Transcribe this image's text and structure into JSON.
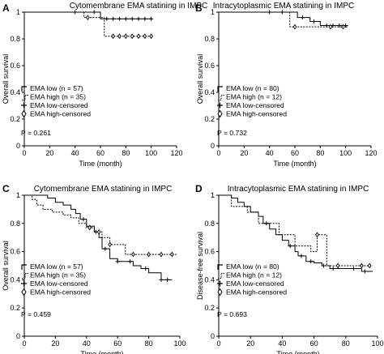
{
  "chart_data": [
    {
      "panel": "A",
      "type": "line",
      "title": "Cytomembrane EMA statining in IMPC",
      "xlabel": "Time (month)",
      "ylabel": "Overall survival",
      "xlim": [
        0,
        120
      ],
      "ylim": [
        0,
        1.0
      ],
      "xticks": [
        0,
        20,
        40,
        60,
        80,
        100,
        120
      ],
      "yticks": [
        0,
        0.2,
        0.4,
        0.6,
        0.8,
        1.0
      ],
      "legend": [
        "EMA low (n = 57)",
        "EMA high (n = 35)",
        "EMA low-censored",
        "EMA high-censored"
      ],
      "p_value": "P = 0.261",
      "series": [
        {
          "name": "EMA low",
          "x": [
            0,
            60,
            100
          ],
          "y": [
            1.0,
            0.95,
            0.95
          ],
          "censored_x": [
            40,
            55,
            65,
            70,
            75,
            80,
            85,
            90,
            95,
            100
          ]
        },
        {
          "name": "EMA high",
          "x": [
            0,
            47,
            60,
            63,
            100
          ],
          "y": [
            1.0,
            0.96,
            0.96,
            0.82,
            0.82
          ],
          "censored_x": [
            50,
            70,
            75,
            80,
            85,
            90,
            95,
            100
          ]
        }
      ]
    },
    {
      "panel": "B",
      "type": "line",
      "title": "Intracytoplasmic EMA statining in IMPC",
      "xlabel": "Time (month)",
      "ylabel": "Overall survival",
      "xlim": [
        0,
        120
      ],
      "ylim": [
        0,
        1.0
      ],
      "xticks": [
        0,
        20,
        40,
        60,
        80,
        100,
        120
      ],
      "yticks": [
        0,
        0.2,
        0.4,
        0.6,
        0.8,
        1.0
      ],
      "legend": [
        "EMA low (n = 80)",
        "EMA high (n = 12)",
        "EMA low-censored",
        "EMA high-censored"
      ],
      "p_value": "P = 0.732",
      "series": [
        {
          "name": "EMA low",
          "x": [
            0,
            62,
            72,
            80,
            102
          ],
          "y": [
            1.0,
            0.96,
            0.93,
            0.9,
            0.9
          ],
          "censored_x": [
            40,
            50,
            66,
            75,
            85,
            90,
            95,
            100
          ]
        },
        {
          "name": "EMA high",
          "x": [
            0,
            56,
            102
          ],
          "y": [
            1.0,
            0.89,
            0.89
          ],
          "censored_x": [
            60,
            88,
            98
          ]
        }
      ]
    },
    {
      "panel": "C",
      "type": "line",
      "title": "Cytomembrane EMA statining in IMPC",
      "xlabel": "Time (month)",
      "ylabel": "Overall survival",
      "xlim": [
        0,
        100
      ],
      "ylim": [
        0,
        1.0
      ],
      "xticks": [
        0,
        20,
        40,
        60,
        80,
        100
      ],
      "yticks": [
        0,
        0.2,
        0.4,
        0.6,
        0.8,
        1.0
      ],
      "legend": [
        "EMA low (n = 57)",
        "EMA high (n = 35)",
        "EMA low-censored",
        "EMA high-censored"
      ],
      "p_value": "P = 0.459",
      "series": [
        {
          "name": "EMA low",
          "x": [
            0,
            10,
            15,
            20,
            25,
            30,
            33,
            36,
            40,
            45,
            48,
            50,
            55,
            60,
            65,
            70,
            75,
            80,
            85,
            88,
            95
          ],
          "y": [
            1.0,
            1.0,
            0.98,
            0.95,
            0.93,
            0.9,
            0.87,
            0.83,
            0.78,
            0.74,
            0.7,
            0.62,
            0.55,
            0.53,
            0.53,
            0.5,
            0.48,
            0.45,
            0.45,
            0.4,
            0.4
          ],
          "censored_x": [
            38,
            46,
            52,
            60,
            68,
            78,
            88,
            92
          ]
        },
        {
          "name": "EMA high",
          "x": [
            0,
            5,
            8,
            12,
            18,
            25,
            30,
            35,
            40,
            45,
            50,
            55,
            65,
            98
          ],
          "y": [
            1.0,
            0.97,
            0.93,
            0.9,
            0.88,
            0.86,
            0.84,
            0.8,
            0.77,
            0.74,
            0.7,
            0.65,
            0.58,
            0.58
          ],
          "censored_x": [
            42,
            48,
            55,
            70,
            80,
            88,
            95
          ]
        }
      ]
    },
    {
      "panel": "D",
      "type": "line",
      "title": "Intracytoplasmic EMA statining in IMPC",
      "xlabel": "Time (month)",
      "ylabel": "Disease-free survival",
      "xlim": [
        0,
        100
      ],
      "ylim": [
        0,
        1.0
      ],
      "xticks": [
        0,
        20,
        40,
        60,
        80,
        100
      ],
      "yticks": [
        0,
        0.2,
        0.4,
        0.6,
        0.8,
        1.0
      ],
      "legend": [
        "EMA low (n = 80)",
        "EMA high (n = 12)",
        "EMA low-censored",
        "EMA high-censored"
      ],
      "p_value": "P = 0.693",
      "series": [
        {
          "name": "EMA low",
          "x": [
            0,
            8,
            12,
            16,
            20,
            25,
            28,
            32,
            36,
            40,
            44,
            48,
            50,
            55,
            60,
            65,
            70,
            80,
            90,
            97
          ],
          "y": [
            1.0,
            0.98,
            0.95,
            0.92,
            0.88,
            0.85,
            0.8,
            0.76,
            0.72,
            0.68,
            0.64,
            0.6,
            0.57,
            0.53,
            0.52,
            0.5,
            0.48,
            0.48,
            0.46,
            0.46
          ],
          "censored_x": [
            30,
            45,
            52,
            58,
            66,
            72,
            85,
            92
          ]
        },
        {
          "name": "EMA high",
          "x": [
            0,
            8,
            18,
            25,
            38,
            48,
            58,
            62,
            68,
            90,
            97
          ],
          "y": [
            1.0,
            0.92,
            0.88,
            0.8,
            0.72,
            0.64,
            0.6,
            0.72,
            0.5,
            0.5,
            0.5
          ],
          "censored_x": [
            62,
            75,
            90,
            95
          ]
        }
      ]
    }
  ]
}
